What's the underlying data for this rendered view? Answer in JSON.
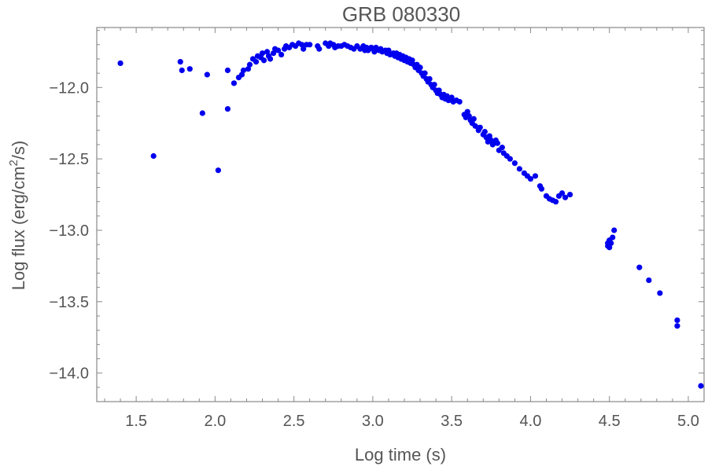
{
  "chart_data": {
    "type": "scatter",
    "title": "GRB 080330",
    "xlabel": "Log time (s)",
    "ylabel_prefix": "Log flux (erg/cm",
    "ylabel_sup": "2",
    "ylabel_suffix": "/s)",
    "xlim": [
      1.25,
      5.1
    ],
    "ylim": [
      -14.2,
      -11.58
    ],
    "xticks": [
      1.5,
      2.0,
      2.5,
      3.0,
      3.5,
      4.0,
      4.5,
      5.0
    ],
    "xtick_labels": [
      "1.5",
      "2.0",
      "2.5",
      "3.0",
      "3.5",
      "4.0",
      "4.5",
      "5.0"
    ],
    "yticks": [
      -14.0,
      -13.5,
      -13.0,
      -12.5,
      -12.0
    ],
    "ytick_labels": [
      "−14.0",
      "−13.5",
      "−13.0",
      "−12.5",
      "−12.0"
    ],
    "grid": false,
    "marker_color": "#0000ee",
    "frame_color": "#888888",
    "points": [
      [
        1.4,
        -11.83
      ],
      [
        1.61,
        -12.48
      ],
      [
        1.78,
        -11.82
      ],
      [
        1.79,
        -11.88
      ],
      [
        1.84,
        -11.87
      ],
      [
        1.92,
        -12.18
      ],
      [
        1.95,
        -11.91
      ],
      [
        2.02,
        -12.58
      ],
      [
        2.08,
        -11.88
      ],
      [
        2.08,
        -12.15
      ],
      [
        2.12,
        -11.97
      ],
      [
        2.15,
        -11.93
      ],
      [
        2.17,
        -11.91
      ],
      [
        2.18,
        -11.88
      ],
      [
        2.21,
        -11.87
      ],
      [
        2.22,
        -11.84
      ],
      [
        2.24,
        -11.8
      ],
      [
        2.26,
        -11.82
      ],
      [
        2.27,
        -11.78
      ],
      [
        2.29,
        -11.79
      ],
      [
        2.3,
        -11.76
      ],
      [
        2.31,
        -11.81
      ],
      [
        2.33,
        -11.75
      ],
      [
        2.34,
        -11.78
      ],
      [
        2.35,
        -11.8
      ],
      [
        2.37,
        -11.76
      ],
      [
        2.38,
        -11.73
      ],
      [
        2.4,
        -11.74
      ],
      [
        2.42,
        -11.77
      ],
      [
        2.44,
        -11.73
      ],
      [
        2.45,
        -11.71
      ],
      [
        2.47,
        -11.72
      ],
      [
        2.49,
        -11.7
      ],
      [
        2.51,
        -11.71
      ],
      [
        2.53,
        -11.69
      ],
      [
        2.55,
        -11.7
      ],
      [
        2.56,
        -11.73
      ],
      [
        2.58,
        -11.7
      ],
      [
        2.6,
        -11.7
      ],
      [
        2.65,
        -11.71
      ],
      [
        2.66,
        -11.73
      ],
      [
        2.7,
        -11.69
      ],
      [
        2.72,
        -11.71
      ],
      [
        2.73,
        -11.69
      ],
      [
        2.75,
        -11.7
      ],
      [
        2.76,
        -11.72
      ],
      [
        2.78,
        -11.71
      ],
      [
        2.8,
        -11.71
      ],
      [
        2.82,
        -11.7
      ],
      [
        2.84,
        -11.71
      ],
      [
        2.86,
        -11.72
      ],
      [
        2.88,
        -11.73
      ],
      [
        2.9,
        -11.71
      ],
      [
        2.92,
        -11.73
      ],
      [
        2.94,
        -11.71
      ],
      [
        2.95,
        -11.74
      ],
      [
        2.96,
        -11.72
      ],
      [
        2.97,
        -11.74
      ],
      [
        2.99,
        -11.72
      ],
      [
        3.0,
        -11.73
      ],
      [
        3.01,
        -11.75
      ],
      [
        3.02,
        -11.72
      ],
      [
        3.04,
        -11.74
      ],
      [
        3.05,
        -11.73
      ],
      [
        3.06,
        -11.75
      ],
      [
        3.08,
        -11.74
      ],
      [
        3.09,
        -11.76
      ],
      [
        3.1,
        -11.74
      ],
      [
        3.11,
        -11.77
      ],
      [
        3.13,
        -11.76
      ],
      [
        3.14,
        -11.78
      ],
      [
        3.15,
        -11.76
      ],
      [
        3.16,
        -11.79
      ],
      [
        3.17,
        -11.77
      ],
      [
        3.18,
        -11.8
      ],
      [
        3.19,
        -11.78
      ],
      [
        3.2,
        -11.81
      ],
      [
        3.21,
        -11.79
      ],
      [
        3.22,
        -11.82
      ],
      [
        3.23,
        -11.8
      ],
      [
        3.24,
        -11.83
      ],
      [
        3.25,
        -11.81
      ],
      [
        3.26,
        -11.84
      ],
      [
        3.27,
        -11.86
      ],
      [
        3.28,
        -11.84
      ],
      [
        3.29,
        -11.88
      ],
      [
        3.3,
        -11.86
      ],
      [
        3.31,
        -11.9
      ],
      [
        3.32,
        -11.92
      ],
      [
        3.33,
        -11.9
      ],
      [
        3.34,
        -11.94
      ],
      [
        3.35,
        -11.96
      ],
      [
        3.36,
        -11.94
      ],
      [
        3.37,
        -11.98
      ],
      [
        3.38,
        -12.0
      ],
      [
        3.39,
        -11.98
      ],
      [
        3.4,
        -12.02
      ],
      [
        3.41,
        -12.04
      ],
      [
        3.42,
        -12.02
      ],
      [
        3.43,
        -12.05
      ],
      [
        3.44,
        -12.07
      ],
      [
        3.45,
        -12.05
      ],
      [
        3.46,
        -12.08
      ],
      [
        3.47,
        -12.06
      ],
      [
        3.48,
        -12.09
      ],
      [
        3.5,
        -12.07
      ],
      [
        3.51,
        -12.1
      ],
      [
        3.53,
        -12.09
      ],
      [
        3.55,
        -12.1
      ],
      [
        3.58,
        -12.19
      ],
      [
        3.59,
        -12.21
      ],
      [
        3.6,
        -12.17
      ],
      [
        3.61,
        -12.2
      ],
      [
        3.62,
        -12.23
      ],
      [
        3.63,
        -12.25
      ],
      [
        3.64,
        -12.22
      ],
      [
        3.65,
        -12.27
      ],
      [
        3.67,
        -12.3
      ],
      [
        3.68,
        -12.28
      ],
      [
        3.7,
        -12.33
      ],
      [
        3.71,
        -12.31
      ],
      [
        3.72,
        -12.35
      ],
      [
        3.73,
        -12.38
      ],
      [
        3.74,
        -12.34
      ],
      [
        3.75,
        -12.37
      ],
      [
        3.76,
        -12.4
      ],
      [
        3.78,
        -12.37
      ],
      [
        3.79,
        -12.39
      ],
      [
        3.8,
        -12.44
      ],
      [
        3.82,
        -12.42
      ],
      [
        3.83,
        -12.46
      ],
      [
        3.85,
        -12.48
      ],
      [
        3.87,
        -12.5
      ],
      [
        3.9,
        -12.53
      ],
      [
        3.93,
        -12.57
      ],
      [
        3.96,
        -12.6
      ],
      [
        3.98,
        -12.62
      ],
      [
        4.0,
        -12.64
      ],
      [
        4.03,
        -12.62
      ],
      [
        4.06,
        -12.69
      ],
      [
        4.07,
        -12.71
      ],
      [
        4.1,
        -12.76
      ],
      [
        4.12,
        -12.78
      ],
      [
        4.14,
        -12.79
      ],
      [
        4.16,
        -12.8
      ],
      [
        4.18,
        -12.76
      ],
      [
        4.2,
        -12.74
      ],
      [
        4.22,
        -12.77
      ],
      [
        4.25,
        -12.75
      ],
      [
        4.49,
        -13.09
      ],
      [
        4.49,
        -13.11
      ],
      [
        4.5,
        -13.07
      ],
      [
        4.5,
        -13.12
      ],
      [
        4.51,
        -13.09
      ],
      [
        4.52,
        -13.05
      ],
      [
        4.53,
        -13.0
      ],
      [
        4.69,
        -13.26
      ],
      [
        4.75,
        -13.35
      ],
      [
        4.82,
        -13.44
      ],
      [
        4.93,
        -13.63
      ],
      [
        4.93,
        -13.67
      ],
      [
        5.08,
        -14.09
      ]
    ]
  }
}
